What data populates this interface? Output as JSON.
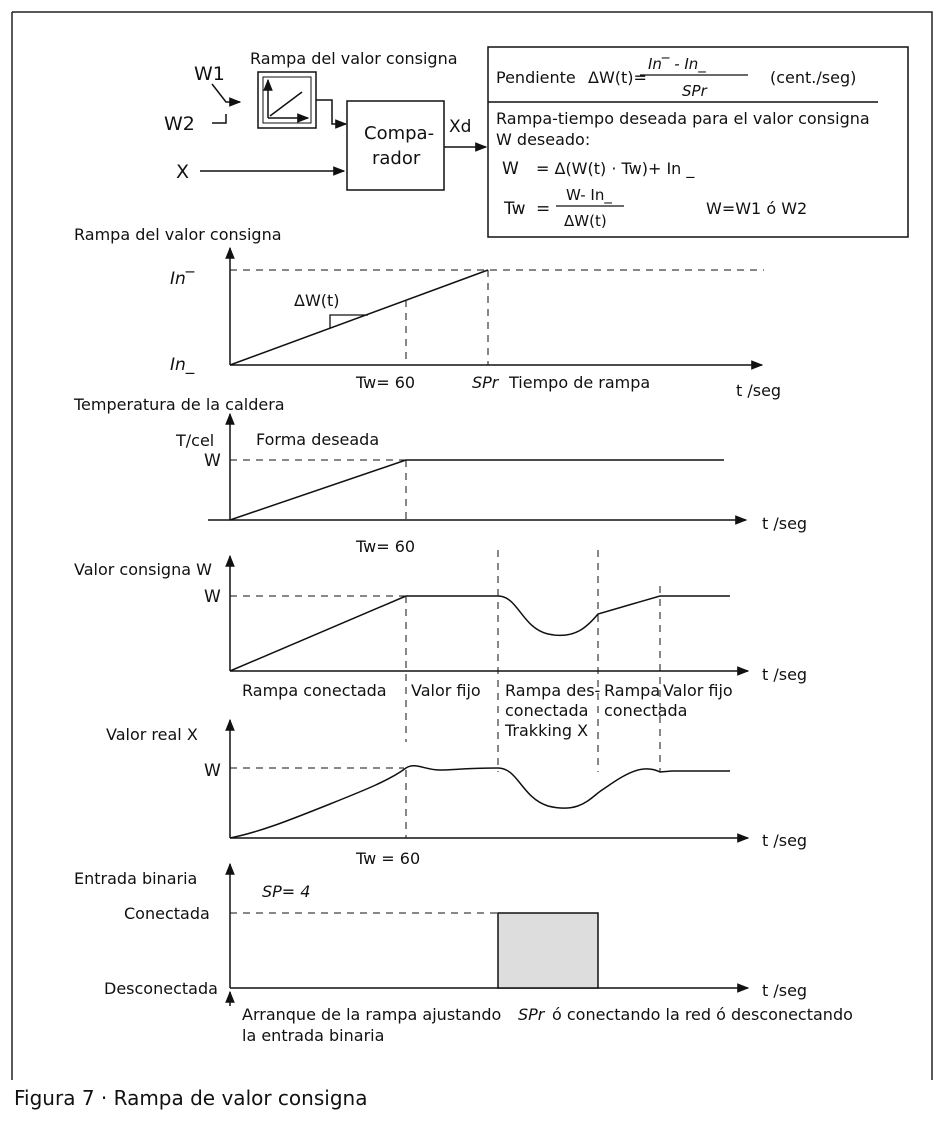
{
  "block": {
    "w1": "W1",
    "w2": "W2",
    "x_input": "X",
    "ramp_title": "Rampa del valor consigna",
    "comparator_line1": "Compa-",
    "comparator_line2": "rador",
    "xd": "Xd"
  },
  "formula_box": {
    "pendiente_label": "Pendiente",
    "delta_w": "ΔW(t)=",
    "numerator": "In‾  -  In_",
    "denominator": "SPr",
    "units": "(cent./seg)",
    "desc_line1": "Rampa-tiempo deseada para el valor consigna",
    "desc_line2": "W deseado:",
    "eq1_lhs": "W",
    "eq1_rhs": "= Δ(W(t) · Tw)+ In _",
    "eq2_lhs": "Tw",
    "eq2_eq": "=",
    "eq2_num": "W- In_",
    "eq2_den": "ΔW(t)",
    "eq2_note": "W=W1 ó W2"
  },
  "plot1": {
    "title": "Rampa del valor consigna",
    "y_top": "In‾",
    "y_bottom": "In_",
    "slope": "ΔW(t)",
    "tw": "Tw= 60",
    "spr": "SPr",
    "ramp_time": "Tiempo de rampa",
    "t_axis": "t /seg"
  },
  "plot2": {
    "title": "Temperatura de la caldera",
    "y_unit": "T/cel",
    "w": "W",
    "shape": "Forma deseada",
    "tw": "Tw= 60",
    "t_axis": "t /seg"
  },
  "plot3": {
    "title": "Valor consigna W",
    "w": "W",
    "t_axis": "t /seg",
    "seg1": "Rampa conectada",
    "seg2": "Valor fijo",
    "seg3_l1": "Rampa des-",
    "seg3_l2": "conectada",
    "seg3_l3": "Trakking X",
    "seg4_l1": "Rampa",
    "seg4_l2": "conectada",
    "seg5_l1": "Valor fijo"
  },
  "plot4": {
    "title": "Valor real X",
    "w": "W",
    "tw": "Tw = 60",
    "t_axis": "t /seg"
  },
  "plot5": {
    "title": "Entrada binaria",
    "sp": "SP= 4",
    "on": "Conectada",
    "off": "Desconectada",
    "t_axis": "t /seg",
    "start_l1": "Arranque de la rampa ajustando",
    "start_l2": "la entrada binaria",
    "spr": "SPr",
    "end_text": "ó conectando la red ó desconectando"
  },
  "caption": "Figura 7 · Rampa de valor consigna",
  "colors": {
    "line": "#111111",
    "pulse_fill": "#dddddd",
    "border": "#222222"
  }
}
